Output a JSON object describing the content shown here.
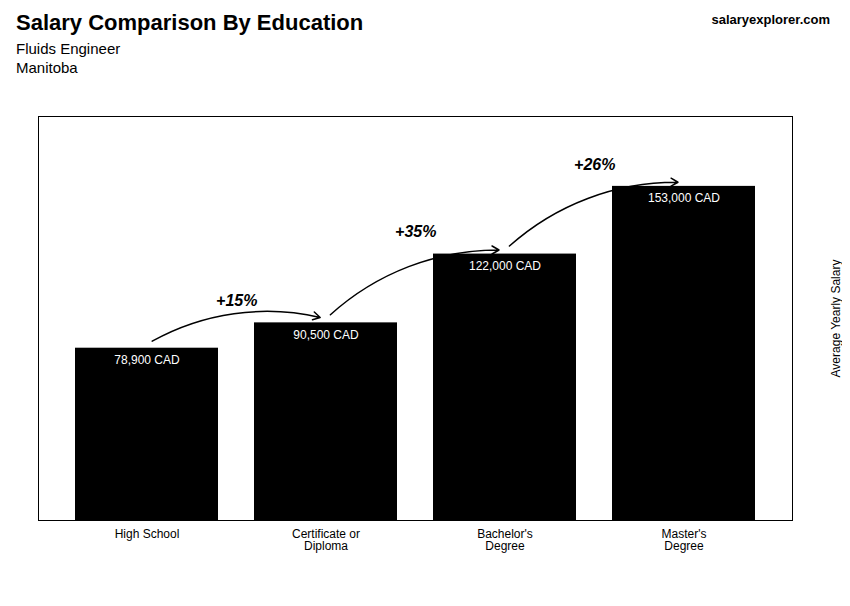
{
  "chart_data": {
    "type": "bar",
    "title": "Salary Comparison By Education",
    "subtitle": "Fluids Engineer",
    "annotations": [
      "Manitoba",
      "salaryexplorer.com"
    ],
    "ylabel": "Average Yearly Salary",
    "categories": [
      "High School",
      "Certificate or\nDiploma",
      "Bachelor's\nDegree",
      "Master's\nDegree"
    ],
    "values": [
      78900,
      90500,
      122000,
      153000
    ],
    "value_labels": [
      "78,900 CAD",
      "90,500 CAD",
      "122,000 CAD",
      "153,000 CAD"
    ],
    "data_labels": true,
    "change_labels": [
      "+15%",
      "+35%",
      "+26%"
    ],
    "ylim": [
      0,
      185000
    ],
    "tick_labels": "x",
    "grid": false
  }
}
